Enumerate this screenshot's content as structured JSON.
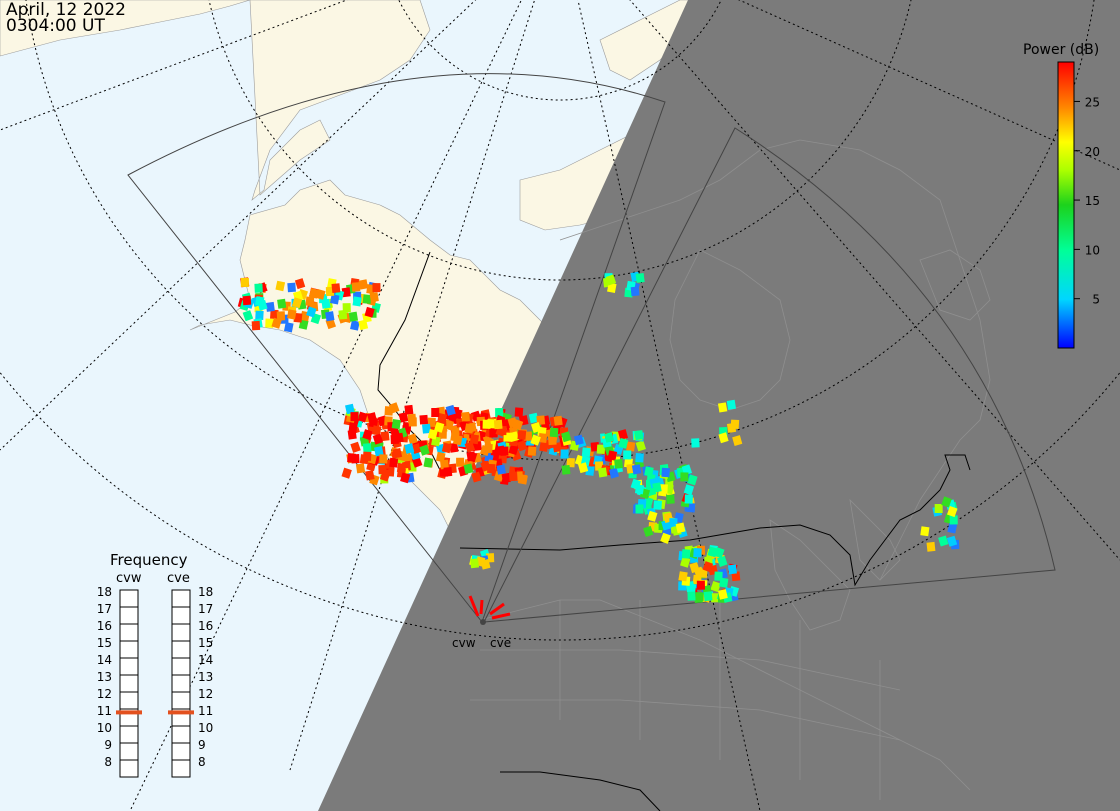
{
  "header": {
    "date": "April, 12 2022",
    "time": "0304:00 UT"
  },
  "colorbar": {
    "title": "Power (dB)",
    "ticks": [
      25,
      20,
      15,
      10,
      5
    ],
    "range": [
      0,
      29
    ]
  },
  "frequency_panel": {
    "title": "Frequency",
    "radars": [
      {
        "name": "cvw",
        "selected_mhz": 10.8
      },
      {
        "name": "cve",
        "selected_mhz": 10.8
      }
    ],
    "levels": [
      "18",
      "17",
      "16",
      "15",
      "14",
      "13",
      "12",
      "11",
      "10",
      "9",
      "8"
    ]
  },
  "stations": [
    {
      "label": "cvw"
    },
    {
      "label": "cve"
    }
  ],
  "colors": {
    "ocean": "#eaf6fd",
    "land_day": "#fbf7e4",
    "night": "#7b7b7b",
    "frequency_marker": "#e3501e"
  }
}
